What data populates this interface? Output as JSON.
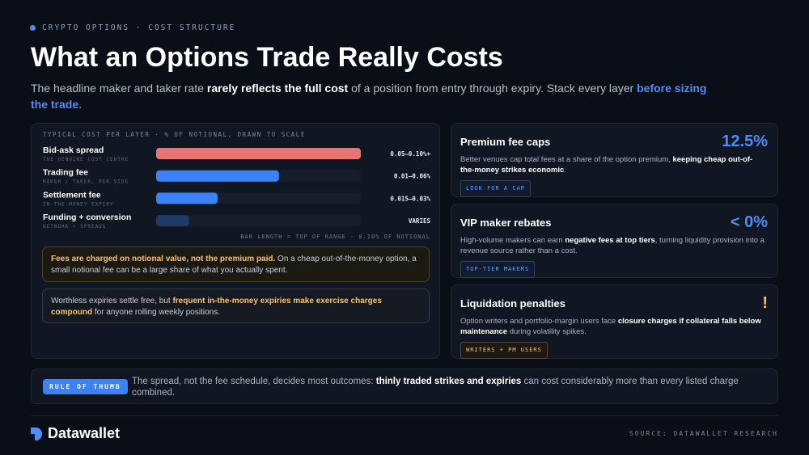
{
  "header": {
    "kicker": "CRYPTO OPTIONS · COST STRUCTURE",
    "title": "What an Options Trade Really Costs",
    "subtitle": [
      {
        "text": "The headline maker and taker rate "
      },
      {
        "text": "rarely reflects the full cost",
        "em": "bold"
      },
      {
        "text": " of a position from entry through expiry. Stack every layer "
      },
      {
        "text": "before sizing the trade",
        "em": "accent"
      },
      {
        "text": "."
      }
    ]
  },
  "chart_data": {
    "type": "bar",
    "orientation": "horizontal",
    "title": "TYPICAL COST PER LAYER · % OF NOTIONAL, DRAWN TO SCALE",
    "categories": [
      "Bid-ask spread",
      "Trading fee",
      "Settlement fee",
      "Funding + conversion"
    ],
    "sublabels": [
      "THE GENUINE COST CENTRE",
      "MAKER / TAKER, PER SIDE",
      "IN-THE-MONEY EXPIRY",
      "NETWORK + SPREADS"
    ],
    "values": [
      0.1,
      0.06,
      0.03,
      0.016
    ],
    "range_labels": [
      "0.05–0.10%+",
      "0.01–0.06%",
      "0.015–0.03%",
      "VARIES"
    ],
    "colors": [
      "#ea7474",
      "#3b82f6",
      "#3b82f6",
      "#1f3a66"
    ],
    "xlim": [
      0,
      0.1
    ],
    "note": "BAR LENGTH = TOP OF RANGE · 0.10% OF NOTIONAL"
  },
  "callouts": [
    {
      "tone": "warn",
      "runs": [
        {
          "text": "Fees are charged on notional value, not the premium paid.",
          "em": "warn"
        },
        {
          "text": " On a cheap out-of-the-money option, a small notional fee can be a large share of what you actually spent."
        }
      ]
    },
    {
      "tone": "plain",
      "runs": [
        {
          "text": "Worthless expiries settle free, but "
        },
        {
          "text": "frequent in-the-money expiries make exercise charges compound",
          "em": "warn"
        },
        {
          "text": " for anyone rolling weekly positions."
        }
      ]
    }
  ],
  "cards": [
    {
      "title": "Premium fee caps",
      "figure": "12.5%",
      "tone": "blue",
      "runs": [
        {
          "text": "Better venues cap total fees at a share of the option premium, "
        },
        {
          "text": "keeping cheap out-of-the-money strikes economic",
          "em": "bold"
        },
        {
          "text": "."
        }
      ],
      "tag": "LOOK FOR A CAP"
    },
    {
      "title": "VIP maker rebates",
      "figure": "< 0%",
      "tone": "blue",
      "runs": [
        {
          "text": "High-volume makers can earn "
        },
        {
          "text": "negative fees at top tiers",
          "em": "bold"
        },
        {
          "text": ", turning liquidity provision into a revenue source rather than a cost."
        }
      ],
      "tag": "TOP-TIER MAKERS"
    },
    {
      "title": "Liquidation penalties",
      "figure": "!",
      "tone": "warn",
      "runs": [
        {
          "text": "Option writers and portfolio-margin users face "
        },
        {
          "text": "closure charges if collateral falls below maintenance",
          "em": "bold"
        },
        {
          "text": " during volatility spikes."
        }
      ],
      "tag": "WRITERS + PM USERS"
    }
  ],
  "rule": {
    "tag": "RULE OF THUMB",
    "runs": [
      {
        "text": "The spread, not the fee schedule, decides most outcomes: "
      },
      {
        "text": "thinly traded strikes and expiries",
        "em": "bold"
      },
      {
        "text": " can cost considerably more than every listed charge combined."
      }
    ]
  },
  "footer": {
    "brand": "Datawallet",
    "source": "SOURCE: DATAWALLET RESEARCH"
  }
}
